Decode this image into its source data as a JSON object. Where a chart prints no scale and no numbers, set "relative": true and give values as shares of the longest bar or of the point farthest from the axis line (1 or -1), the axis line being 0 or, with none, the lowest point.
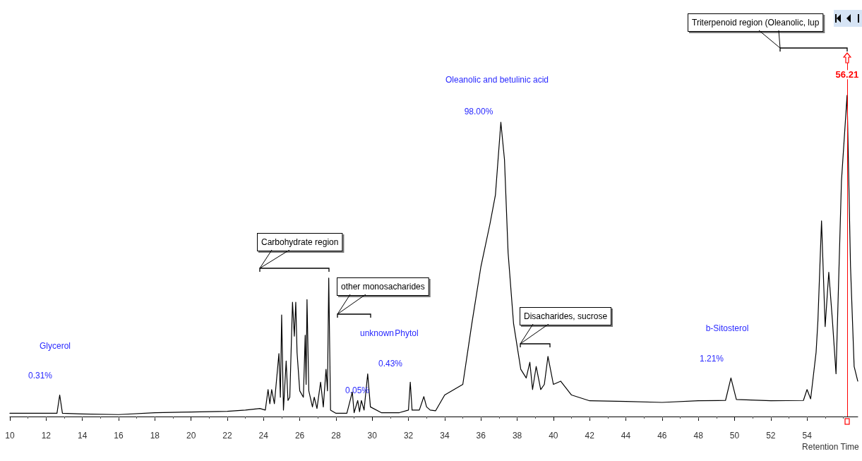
{
  "chart_data": {
    "type": "line",
    "xlabel": "Retention Time",
    "relative": true,
    "grid": false,
    "marker": "none",
    "line_style": "solid",
    "xlim": [
      10,
      56.8
    ],
    "xticks": [
      10,
      12,
      14,
      16,
      18,
      20,
      22,
      24,
      26,
      28,
      30,
      32,
      34,
      36,
      38,
      40,
      42,
      44,
      46,
      48,
      50,
      52,
      54
    ],
    "series": [
      {
        "color": "#000000",
        "x": [
          10,
          11,
          12,
          12.6,
          12.75,
          12.9,
          14,
          16,
          18,
          20,
          22,
          23,
          23.8,
          24.1,
          24.25,
          24.35,
          24.45,
          24.6,
          24.85,
          24.93,
          25.0,
          25.1,
          25.25,
          25.35,
          25.45,
          25.6,
          25.7,
          25.78,
          25.85,
          26.0,
          26.2,
          26.3,
          26.35,
          26.4,
          26.5,
          26.7,
          26.8,
          26.95,
          27.15,
          27.3,
          27.45,
          27.53,
          27.6,
          27.7,
          28.0,
          28.6,
          28.9,
          29.0,
          29.2,
          29.3,
          29.4,
          29.55,
          29.75,
          29.9,
          30.5,
          31.5,
          32.0,
          32.1,
          32.2,
          32.6,
          32.85,
          33.0,
          33.2,
          33.5,
          34.0,
          35.0,
          35.5,
          36.0,
          36.5,
          36.8,
          37.1,
          37.3,
          37.5,
          37.8,
          38.2,
          38.5,
          38.7,
          38.85,
          39.05,
          39.3,
          39.5,
          39.7,
          40.0,
          40.4,
          41.0,
          42.0,
          44.0,
          46.0,
          48.0,
          49.5,
          49.8,
          50.1,
          52.0,
          53.8,
          54.0,
          54.2,
          54.5,
          54.6,
          54.8,
          55.0,
          55.2,
          55.4,
          55.6,
          55.9,
          56.21,
          56.4,
          56.6,
          56.8
        ],
        "values": [
          0.01,
          0.01,
          0.01,
          0.01,
          0.067,
          0.01,
          0.008,
          0.006,
          0.012,
          0.014,
          0.016,
          0.02,
          0.025,
          0.02,
          0.084,
          0.04,
          0.084,
          0.04,
          0.196,
          0.06,
          0.316,
          0.02,
          0.173,
          0.05,
          0.06,
          0.356,
          0.25,
          0.356,
          0.2,
          0.08,
          0.06,
          0.253,
          0.1,
          0.364,
          0.08,
          0.03,
          0.06,
          0.025,
          0.107,
          0.03,
          0.147,
          0.08,
          0.431,
          0.02,
          0.01,
          0.01,
          0.076,
          0.012,
          0.05,
          0.015,
          0.05,
          0.02,
          0.133,
          0.03,
          0.012,
          0.012,
          0.02,
          0.107,
          0.02,
          0.02,
          0.062,
          0.03,
          0.02,
          0.018,
          0.067,
          0.1,
          0.29,
          0.467,
          0.6,
          0.69,
          0.916,
          0.8,
          0.51,
          0.29,
          0.147,
          0.12,
          0.169,
          0.084,
          0.156,
          0.084,
          0.1,
          0.187,
          0.1,
          0.11,
          0.067,
          0.049,
          0.047,
          0.044,
          0.049,
          0.05,
          0.12,
          0.053,
          0.049,
          0.05,
          0.084,
          0.055,
          0.2,
          0.298,
          0.609,
          0.28,
          0.449,
          0.3,
          0.133,
          0.733,
          1.0,
          0.467,
          0.156,
          0.11
        ]
      }
    ],
    "ref_lines": [
      {
        "axis": "x",
        "value": 56.21,
        "label": "56.21",
        "color": "#ff0000"
      }
    ],
    "annotations": [
      "Carbohydrate region",
      "other monosacharides",
      "Disacharides, sucrose",
      "Triterpenoid region (Oleanolic, lup",
      "Glycerol",
      "0.31%",
      "unknown",
      "0.05%",
      "Phytol",
      "0.43%",
      "Oleanolic and betulinic acid",
      "98.00%",
      "b-Sitosterol",
      "1.21%"
    ]
  }
}
